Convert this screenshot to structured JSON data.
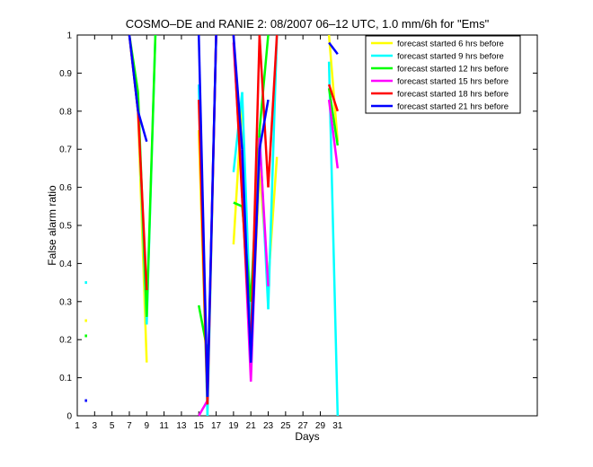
{
  "chart_data": {
    "type": "line",
    "title": "COSMO–DE and RANIE 2: 08/2007 06–12 UTC, 1.0 mm/6h for \"Ems\"",
    "xlabel": "Days",
    "ylabel": "False alarm ratio",
    "xlim": [
      1,
      54
    ],
    "ylim": [
      0,
      1
    ],
    "xticks": [
      1,
      3,
      5,
      7,
      9,
      11,
      13,
      15,
      17,
      19,
      21,
      23,
      25,
      27,
      29,
      31
    ],
    "yticks": [
      0,
      0.1,
      0.2,
      0.3,
      0.4,
      0.5,
      0.6,
      0.7,
      0.8,
      0.9,
      1
    ],
    "ytick_labels": [
      "0",
      "0.1",
      "0.2",
      "0.3",
      "0.4",
      "0.5",
      "0.6",
      "0.7",
      "0.8",
      "0.9",
      "1"
    ],
    "legend_position": "top-right",
    "series": [
      {
        "name": "forecast started 6 hrs before",
        "color": "#ffff00",
        "points": [
          [
            2,
            0.25
          ],
          [
            7,
            1.0
          ],
          [
            8,
            0.8
          ],
          [
            9,
            0.14
          ],
          [
            15,
            0.75
          ],
          [
            16,
            0.02
          ],
          [
            17,
            1.0
          ],
          [
            19,
            0.45
          ],
          [
            20,
            0.83
          ],
          [
            21,
            0.15
          ],
          [
            22,
            0.65
          ],
          [
            23,
            0.35
          ],
          [
            24,
            0.68
          ],
          [
            30,
            1.0
          ],
          [
            31,
            0.72
          ]
        ]
      },
      {
        "name": "forecast started 9 hrs before",
        "color": "#00ffff",
        "points": [
          [
            2,
            0.35
          ],
          [
            7,
            1.0
          ],
          [
            8,
            0.83
          ],
          [
            9,
            0.24
          ],
          [
            10,
            1.0
          ],
          [
            15,
            0.87
          ],
          [
            16,
            0.0
          ],
          [
            17,
            1.0
          ],
          [
            19,
            0.64
          ],
          [
            20,
            0.85
          ],
          [
            21,
            0.22
          ],
          [
            22,
            0.75
          ],
          [
            23,
            0.28
          ],
          [
            24,
            1.0
          ],
          [
            30,
            0.93
          ],
          [
            31,
            0.0
          ]
        ]
      },
      {
        "name": "forecast started 12 hrs before",
        "color": "#00ff00",
        "points": [
          [
            2,
            0.21
          ],
          [
            7,
            1.0
          ],
          [
            8,
            0.85
          ],
          [
            9,
            0.26
          ],
          [
            10,
            1.0
          ],
          [
            15,
            0.29
          ],
          [
            16,
            0.17
          ],
          [
            19,
            0.56
          ],
          [
            20,
            0.55
          ],
          [
            21,
            0.3
          ],
          [
            22,
            0.75
          ],
          [
            23,
            1.0
          ],
          [
            30,
            0.86
          ],
          [
            31,
            0.71
          ]
        ]
      },
      {
        "name": "forecast started 15 hrs before",
        "color": "#ff00ff",
        "points": [
          [
            15,
            0.0
          ],
          [
            16,
            0.04
          ],
          [
            17,
            1.0
          ],
          [
            19,
            0.98
          ],
          [
            20,
            0.6
          ],
          [
            21,
            0.09
          ],
          [
            22,
            0.73
          ],
          [
            23,
            0.34
          ],
          [
            30,
            0.83
          ],
          [
            31,
            0.65
          ]
        ]
      },
      {
        "name": "forecast started 18 hrs before",
        "color": "#ff0000",
        "points": [
          [
            7,
            1.0
          ],
          [
            8,
            0.8
          ],
          [
            9,
            0.33
          ],
          [
            15,
            0.83
          ],
          [
            16,
            0.03
          ],
          [
            17,
            1.0
          ],
          [
            19,
            1.0
          ],
          [
            20,
            0.57
          ],
          [
            21,
            0.17
          ],
          [
            22,
            1.0
          ],
          [
            23,
            0.6
          ],
          [
            24,
            1.0
          ],
          [
            30,
            0.87
          ],
          [
            31,
            0.8
          ]
        ]
      },
      {
        "name": "forecast started 21 hrs before",
        "color": "#0000ff",
        "points": [
          [
            2,
            0.04
          ],
          [
            7,
            1.0
          ],
          [
            8,
            0.8
          ],
          [
            9,
            0.72
          ],
          [
            15,
            1.0
          ],
          [
            16,
            0.05
          ],
          [
            17,
            1.0
          ],
          [
            19,
            1.0
          ],
          [
            20,
            0.7
          ],
          [
            21,
            0.14
          ],
          [
            22,
            0.7
          ],
          [
            23,
            0.83
          ],
          [
            30,
            0.98
          ],
          [
            31,
            0.95
          ]
        ]
      }
    ]
  }
}
